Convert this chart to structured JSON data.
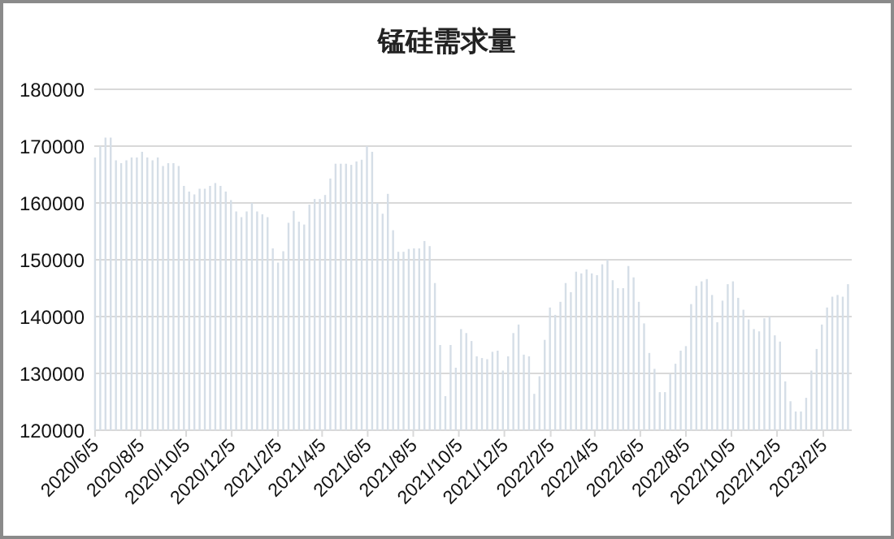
{
  "chart_data": {
    "type": "bar",
    "title": "锰硅需求量",
    "color": "#d5dee7",
    "grid": "y",
    "xlim": [
      "2020-06-04",
      "2023-03-15"
    ],
    "xticks": [
      {
        "value": "2020-06-05",
        "label": "2020/6/5"
      },
      {
        "value": "2020-08-05",
        "label": "2020/8/5"
      },
      {
        "value": "2020-10-05",
        "label": "2020/10/5"
      },
      {
        "value": "2020-12-05",
        "label": "2020/12/5"
      },
      {
        "value": "2021-02-05",
        "label": "2021/2/5"
      },
      {
        "value": "2021-04-05",
        "label": "2021/4/5"
      },
      {
        "value": "2021-06-05",
        "label": "2021/6/5"
      },
      {
        "value": "2021-08-05",
        "label": "2021/8/5"
      },
      {
        "value": "2021-10-05",
        "label": "2021/10/5"
      },
      {
        "value": "2021-12-05",
        "label": "2021/12/5"
      },
      {
        "value": "2022-02-05",
        "label": "2022/2/5"
      },
      {
        "value": "2022-04-05",
        "label": "2022/4/5"
      },
      {
        "value": "2022-06-05",
        "label": "2022/6/5"
      },
      {
        "value": "2022-08-05",
        "label": "2022/8/5"
      },
      {
        "value": "2022-10-05",
        "label": "2022/10/5"
      },
      {
        "value": "2022-12-05",
        "label": "2022/12/5"
      },
      {
        "value": "2023-02-05",
        "label": "2023/2/5"
      }
    ],
    "ylim": [
      120000,
      180000
    ],
    "yticks": [
      120000,
      130000,
      140000,
      150000,
      160000,
      170000,
      180000
    ],
    "x": [
      "2020-06-05",
      "2020-06-12",
      "2020-06-19",
      "2020-06-26",
      "2020-07-03",
      "2020-07-10",
      "2020-07-17",
      "2020-07-24",
      "2020-07-31",
      "2020-08-07",
      "2020-08-14",
      "2020-08-21",
      "2020-08-28",
      "2020-09-04",
      "2020-09-11",
      "2020-09-18",
      "2020-09-25",
      "2020-10-02",
      "2020-10-09",
      "2020-10-16",
      "2020-10-23",
      "2020-10-30",
      "2020-11-06",
      "2020-11-13",
      "2020-11-20",
      "2020-11-27",
      "2020-12-04",
      "2020-12-11",
      "2020-12-18",
      "2020-12-25",
      "2021-01-01",
      "2021-01-08",
      "2021-01-15",
      "2021-01-22",
      "2021-01-29",
      "2021-02-05",
      "2021-02-12",
      "2021-02-19",
      "2021-02-26",
      "2021-03-05",
      "2021-03-12",
      "2021-03-19",
      "2021-03-26",
      "2021-04-02",
      "2021-04-09",
      "2021-04-16",
      "2021-04-23",
      "2021-04-30",
      "2021-05-07",
      "2021-05-14",
      "2021-05-21",
      "2021-05-28",
      "2021-06-04",
      "2021-06-11",
      "2021-06-18",
      "2021-06-25",
      "2021-07-02",
      "2021-07-09",
      "2021-07-16",
      "2021-07-23",
      "2021-07-30",
      "2021-08-06",
      "2021-08-13",
      "2021-08-20",
      "2021-08-27",
      "2021-09-03",
      "2021-09-10",
      "2021-09-17",
      "2021-09-24",
      "2021-10-01",
      "2021-10-08",
      "2021-10-15",
      "2021-10-22",
      "2021-10-29",
      "2021-11-05",
      "2021-11-12",
      "2021-11-19",
      "2021-11-26",
      "2021-12-03",
      "2021-12-10",
      "2021-12-17",
      "2021-12-24",
      "2021-12-31",
      "2022-01-07",
      "2022-01-14",
      "2022-01-21",
      "2022-01-28",
      "2022-02-04",
      "2022-02-11",
      "2022-02-18",
      "2022-02-25",
      "2022-03-04",
      "2022-03-11",
      "2022-03-18",
      "2022-03-25",
      "2022-04-01",
      "2022-04-08",
      "2022-04-15",
      "2022-04-22",
      "2022-04-29",
      "2022-05-06",
      "2022-05-13",
      "2022-05-20",
      "2022-05-27",
      "2022-06-03",
      "2022-06-10",
      "2022-06-17",
      "2022-06-24",
      "2022-07-01",
      "2022-07-08",
      "2022-07-15",
      "2022-07-22",
      "2022-07-29",
      "2022-08-05",
      "2022-08-12",
      "2022-08-19",
      "2022-08-26",
      "2022-09-02",
      "2022-09-09",
      "2022-09-16",
      "2022-09-23",
      "2022-09-30",
      "2022-10-07",
      "2022-10-14",
      "2022-10-21",
      "2022-10-28",
      "2022-11-04",
      "2022-11-11",
      "2022-11-18",
      "2022-11-25",
      "2022-12-02",
      "2022-12-09",
      "2022-12-16",
      "2022-12-23",
      "2022-12-30",
      "2023-01-06",
      "2023-01-13",
      "2023-01-20",
      "2023-01-27",
      "2023-02-03",
      "2023-02-10",
      "2023-02-17",
      "2023-02-24",
      "2023-03-03",
      "2023-03-10"
    ],
    "values": [
      168000,
      170000,
      171500,
      171500,
      167500,
      167000,
      167500,
      168000,
      168000,
      169000,
      168000,
      167500,
      168000,
      166500,
      167000,
      167000,
      166500,
      163000,
      162000,
      161500,
      162500,
      162500,
      163000,
      163500,
      163000,
      162000,
      160500,
      158500,
      157500,
      158500,
      160000,
      158500,
      158000,
      157500,
      152000,
      149500,
      151500,
      156500,
      158600,
      156700,
      156200,
      159700,
      160700,
      160700,
      161400,
      164300,
      166900,
      166900,
      166900,
      166700,
      167300,
      167600,
      170000,
      169000,
      160000,
      158100,
      161600,
      155200,
      151400,
      151400,
      151900,
      152000,
      152000,
      153300,
      152400,
      145900,
      135000,
      126000,
      135000,
      131000,
      137800,
      137100,
      135700,
      133000,
      132700,
      132500,
      133800,
      134000,
      130500,
      133000,
      137100,
      138600,
      133300,
      133000,
      126400,
      129500,
      135900,
      141600,
      140300,
      142600,
      145900,
      144300,
      147900,
      147600,
      148300,
      147600,
      147300,
      149200,
      150000,
      146400,
      145000,
      145000,
      148900,
      146900,
      142600,
      138800,
      133600,
      130800,
      126700,
      126700,
      129900,
      131700,
      134000,
      134800,
      142200,
      145400,
      146200,
      146600,
      143800,
      139000,
      142800,
      145700,
      146200,
      143300,
      141200,
      139500,
      137800,
      137400,
      139700,
      140000,
      136700,
      135600,
      128600,
      125100,
      123300,
      123300,
      125700,
      130500,
      134300,
      138600,
      141600,
      143500,
      143800,
      143500,
      145700
    ]
  }
}
